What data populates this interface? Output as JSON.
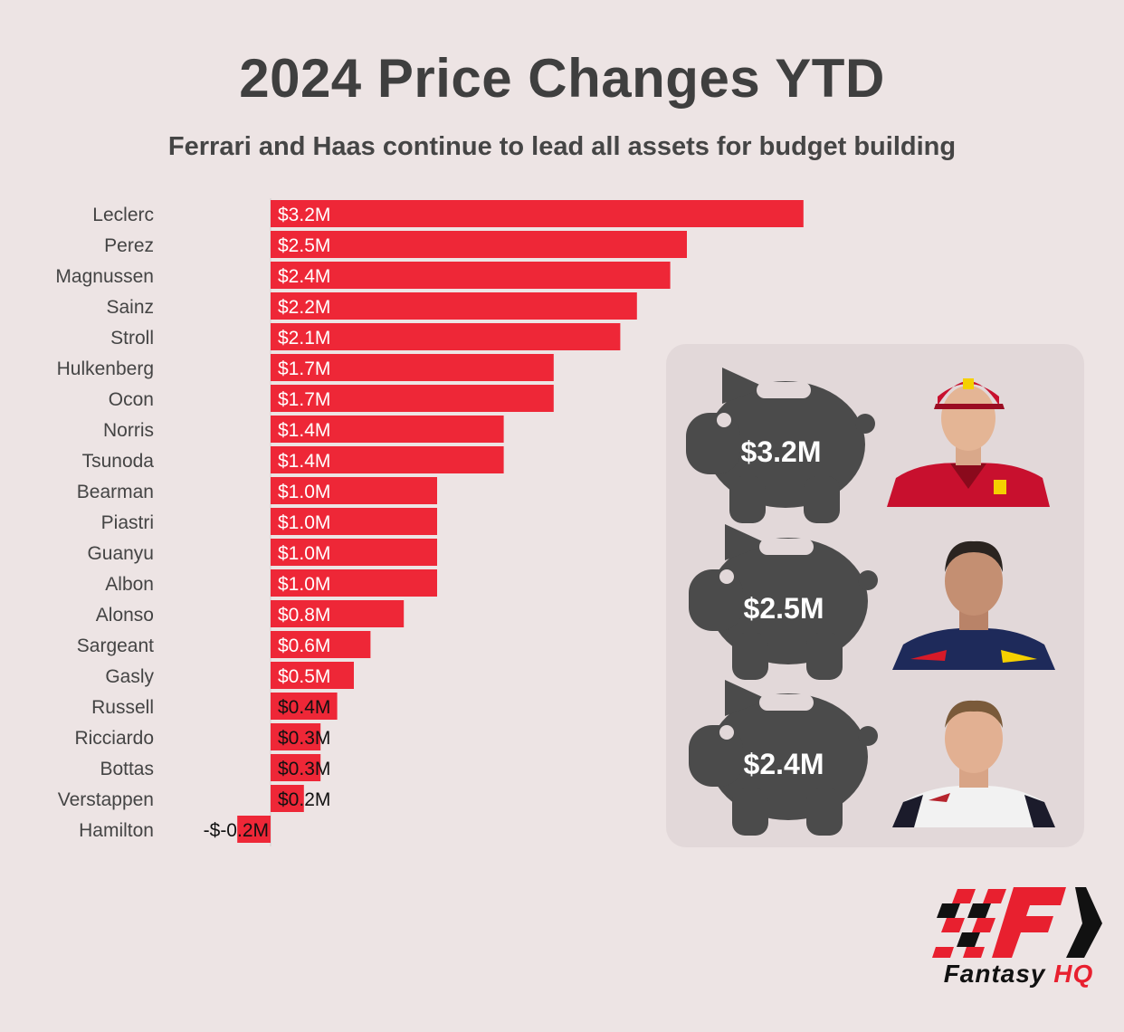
{
  "title": "2024 Price Changes YTD",
  "subtitle": "Ferrari and Haas continue to lead all assets for budget building",
  "chart_data": {
    "type": "bar",
    "orientation": "horizontal",
    "bar_color": "#ee2737",
    "categories": [
      "Leclerc",
      "Perez",
      "Magnussen",
      "Sainz",
      "Stroll",
      "Hulkenberg",
      "Ocon",
      "Norris",
      "Tsunoda",
      "Bearman",
      "Piastri",
      "Guanyu",
      "Albon",
      "Alonso",
      "Sargeant",
      "Gasly",
      "Russell",
      "Ricciardo",
      "Bottas",
      "Verstappen",
      "Hamilton"
    ],
    "values": [
      3.2,
      2.5,
      2.4,
      2.2,
      2.1,
      1.7,
      1.7,
      1.4,
      1.4,
      1.0,
      1.0,
      1.0,
      1.0,
      0.8,
      0.6,
      0.5,
      0.4,
      0.3,
      0.3,
      0.2,
      -0.2
    ],
    "data_labels": [
      "$3.2M",
      "$2.5M",
      "$2.4M",
      "$2.2M",
      "$2.1M",
      "$1.7M",
      "$1.7M",
      "$1.4M",
      "$1.4M",
      "$1.0M",
      "$1.0M",
      "$1.0M",
      "$1.0M",
      "$0.8M",
      "$0.6M",
      "$0.5M",
      "$0.4M",
      "$0.3M",
      "$0.3M",
      "$0.2M",
      "-$-0.2M"
    ],
    "unit": "$M"
  },
  "highlights": [
    {
      "value": "$3.2M",
      "team_colors": [
        "#c8102e",
        "#f5d000"
      ]
    },
    {
      "value": "$2.5M",
      "team_colors": [
        "#1e2a5a",
        "#d71a28"
      ]
    },
    {
      "value": "$2.4M",
      "team_colors": [
        "#f2f2f2",
        "#b6242d"
      ]
    }
  ],
  "logo": {
    "brand": "Fantasy",
    "suffix": "HQ",
    "accent": "#e8202f"
  }
}
